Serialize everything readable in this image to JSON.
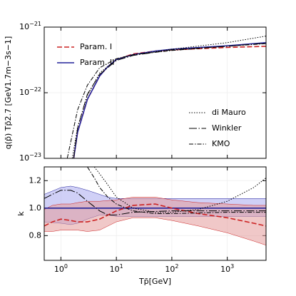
{
  "chart_data": [
    {
      "type": "line",
      "ylabel": "q(p̄) Tp̄2.7 [GeV1.7m−3s−1]",
      "xscale": "log",
      "yscale": "log",
      "grid": true,
      "xlim": [
        0.5,
        5000
      ],
      "ylim": [
        1e-23,
        1e-21
      ],
      "xticks": [
        1,
        10,
        100,
        1000
      ],
      "yticks": [
        {
          "value": 1e-23,
          "label": "10",
          "exponent": "−23"
        },
        {
          "value": 1e-22,
          "label": "10",
          "exponent": "−22"
        },
        {
          "value": 1e-21,
          "label": "10",
          "exponent": "−21"
        }
      ],
      "series": [
        {
          "name": "Param. I",
          "color": "#cc2222",
          "dash": "dashed",
          "legend": "upper left",
          "x": [
            1.7,
            2,
            3,
            5,
            7,
            10,
            20,
            50,
            100,
            1000,
            5000
          ],
          "values": [
            1e-23,
            2.5e-23,
            7.9e-23,
            1.8e-22,
            2.5e-22,
            3.2e-22,
            3.9e-22,
            4.3e-22,
            4.5e-22,
            4.9e-22,
            5.1e-22
          ]
        },
        {
          "name": "Param. II",
          "color": "#22229a",
          "dash": "solid",
          "legend": "upper left",
          "x": [
            1.7,
            2,
            3,
            5,
            7,
            10,
            20,
            50,
            100,
            1000,
            5000
          ],
          "values": [
            1e-23,
            2.5e-23,
            7.9e-23,
            1.8e-22,
            2.5e-22,
            3.2e-22,
            3.8e-22,
            4.3e-22,
            4.6e-22,
            5.2e-22,
            5.8e-22
          ]
        },
        {
          "name": "di Mauro",
          "color": "#000000",
          "dash": "dotted",
          "legend": "lower right",
          "x": [
            1.6,
            2,
            3,
            5,
            10,
            20,
            100,
            1000,
            5000
          ],
          "values": [
            1e-23,
            3e-23,
            9e-23,
            2e-22,
            3.2e-22,
            3.8e-22,
            4.6e-22,
            5.8e-22,
            7.3e-22
          ]
        },
        {
          "name": "Winkler",
          "color": "#000000",
          "dash": "longdashdot",
          "legend": "lower right",
          "x": [
            1.7,
            2,
            3,
            5,
            10,
            20,
            100,
            1000,
            5000
          ],
          "values": [
            1e-23,
            2.9e-23,
            9.5e-23,
            1.9e-22,
            3.1e-22,
            3.7e-22,
            4.5e-22,
            5.1e-22,
            5.7e-22
          ]
        },
        {
          "name": "KMO",
          "color": "#000000",
          "dash": "dashdot",
          "legend": "lower right",
          "x": [
            1.3,
            2,
            3,
            5,
            10,
            20,
            100,
            1000,
            5000
          ],
          "values": [
            1e-23,
            5.5e-23,
            1.3e-22,
            2.4e-22,
            3.3e-22,
            3.8e-22,
            4.4e-22,
            5.1e-22,
            5.6e-22
          ]
        }
      ]
    },
    {
      "type": "line",
      "ylabel": "k",
      "xlabel": "Tp̄[GeV]",
      "xscale": "log",
      "yscale": "linear",
      "grid": true,
      "xlim": [
        0.5,
        5000
      ],
      "ylim": [
        0.62,
        1.3
      ],
      "xticks": [
        {
          "value": 1,
          "label": "10",
          "exponent": "0"
        },
        {
          "value": 10,
          "label": "10",
          "exponent": "1"
        },
        {
          "value": 100,
          "label": "10",
          "exponent": "2"
        },
        {
          "value": 1000,
          "label": "10",
          "exponent": "3"
        }
      ],
      "yticks": [
        0.8,
        {
          "value": 1,
          "label": "1.0"
        },
        1.2
      ],
      "series": [
        {
          "color": "#22229a",
          "dash": "none",
          "band_color": "#aaaaee",
          "x": [
            0.5,
            1,
            1.5,
            2,
            3,
            5,
            7,
            10,
            5000
          ],
          "band_upper": [
            1.1,
            1.15,
            1.16,
            1.15,
            1.13,
            1.1,
            1.08,
            1.07,
            1.07
          ],
          "band_lower": [
            0.9,
            0.89,
            0.88,
            0.89,
            0.92,
            0.95,
            0.95,
            0.94,
            0.94
          ]
        },
        {
          "color": "#cc2222",
          "dash": "none",
          "band_color": "#e39a9a",
          "x": [
            0.5,
            0.7,
            1,
            1.5,
            2,
            3,
            5,
            10,
            20,
            50,
            100,
            300,
            1000,
            3000,
            5000
          ],
          "band_upper": [
            0.99,
            1.02,
            1.03,
            1.03,
            1.04,
            1.05,
            1.05,
            1.06,
            1.08,
            1.08,
            1.06,
            1.04,
            1.03,
            1.02,
            1.02
          ],
          "band_lower": [
            0.83,
            0.83,
            0.84,
            0.84,
            0.84,
            0.83,
            0.84,
            0.9,
            0.93,
            0.93,
            0.91,
            0.87,
            0.82,
            0.76,
            0.73
          ]
        },
        {
          "color": "#22229a",
          "dash": "solid",
          "x": [
            0.5,
            5000
          ],
          "values": [
            1,
            1
          ]
        },
        {
          "color": "#cc2222",
          "dash": "dashed",
          "x": [
            0.5,
            0.7,
            1,
            1.5,
            2,
            3,
            5,
            10,
            20,
            50,
            100,
            300,
            1000,
            3000,
            5000
          ],
          "values": [
            0.87,
            0.9,
            0.92,
            0.91,
            0.9,
            0.9,
            0.92,
            0.98,
            1.02,
            1.03,
            1.0,
            0.96,
            0.93,
            0.89,
            0.87
          ]
        },
        {
          "color": "#000000",
          "dash": "dotted",
          "x": [
            4,
            5,
            7,
            10,
            20,
            50,
            100,
            300,
            1000,
            3000,
            5000
          ],
          "values": [
            1.3,
            1.25,
            1.17,
            1.08,
            1.0,
            0.97,
            0.97,
            0.99,
            1.05,
            1.15,
            1.22
          ]
        },
        {
          "color": "#000000",
          "dash": "longdashdot",
          "x": [
            0.5,
            0.7,
            1,
            1.5,
            2,
            3,
            5,
            7,
            10,
            20,
            100,
            1000,
            5000
          ],
          "values": [
            1.07,
            1.1,
            1.13,
            1.13,
            1.11,
            1.05,
            0.98,
            0.95,
            0.95,
            0.97,
            0.98,
            0.98,
            0.98
          ]
        },
        {
          "color": "#000000",
          "dash": "dashdot",
          "x": [
            3,
            4,
            5,
            7,
            10,
            15,
            20,
            50,
            100,
            1000,
            5000
          ],
          "values": [
            1.3,
            1.22,
            1.15,
            1.08,
            1.03,
            1.0,
            0.98,
            0.96,
            0.96,
            0.97,
            0.97
          ]
        }
      ]
    }
  ]
}
